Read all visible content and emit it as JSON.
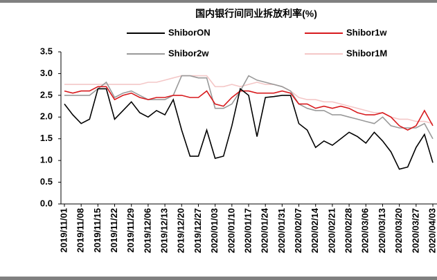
{
  "chart_data": {
    "type": "line",
    "title": "国内银行间同业拆放利率(%)",
    "categories": [
      "2019/11/01",
      null,
      "2019/11/08",
      null,
      "2019/11/15",
      null,
      "2019/11/22",
      null,
      "2019/11/29",
      null,
      "2019/12/06",
      null,
      "2019/12/13",
      null,
      "2019/12/20",
      null,
      "2019/12/27",
      null,
      "2020/01/03",
      null,
      "2020/01/10",
      null,
      "2020/01/17",
      null,
      "2020/01/24",
      null,
      "2020/01/31",
      null,
      "2020/02/07",
      null,
      "2020/02/14",
      null,
      "2020/02/21",
      null,
      "2020/02/28",
      null,
      "2020/03/06",
      null,
      "2020/03/13",
      null,
      "2020/03/20",
      null,
      "2020/03/27",
      null,
      "2020/04/03"
    ],
    "series": [
      {
        "name": "ShiborON",
        "color": "#000000",
        "values": [
          2.3,
          2.05,
          1.85,
          1.95,
          2.65,
          2.65,
          1.95,
          2.15,
          2.35,
          2.1,
          2.0,
          2.15,
          2.05,
          2.4,
          1.7,
          1.1,
          1.1,
          1.7,
          1.05,
          1.1,
          1.8,
          2.65,
          2.5,
          1.55,
          2.45,
          2.47,
          2.5,
          2.5,
          1.85,
          1.7,
          1.3,
          1.45,
          1.35,
          1.5,
          1.65,
          1.55,
          1.4,
          1.65,
          1.45,
          1.2,
          0.8,
          0.85,
          1.3,
          1.6,
          0.95
        ]
      },
      {
        "name": "Shibor1w",
        "color": "#d7191c",
        "values": [
          2.6,
          2.55,
          2.6,
          2.6,
          2.7,
          2.7,
          2.4,
          2.5,
          2.55,
          2.45,
          2.4,
          2.45,
          2.45,
          2.5,
          2.5,
          2.45,
          2.45,
          2.6,
          2.3,
          2.25,
          2.45,
          2.6,
          2.6,
          2.55,
          2.55,
          2.55,
          2.6,
          2.55,
          2.3,
          2.3,
          2.2,
          2.25,
          2.2,
          2.25,
          2.2,
          2.1,
          2.05,
          2.05,
          2.1,
          2.0,
          1.8,
          1.7,
          1.8,
          2.15,
          1.8
        ]
      },
      {
        "name": "Shibor2w",
        "color": "#999999",
        "values": [
          2.5,
          2.5,
          2.5,
          2.5,
          2.65,
          2.8,
          2.45,
          2.55,
          2.6,
          2.5,
          2.4,
          2.4,
          2.4,
          2.5,
          2.95,
          2.95,
          2.9,
          2.9,
          2.2,
          2.2,
          2.3,
          2.6,
          2.95,
          2.85,
          2.8,
          2.75,
          2.7,
          2.6,
          2.3,
          2.2,
          2.15,
          2.15,
          2.05,
          2.05,
          2.0,
          1.95,
          1.9,
          1.85,
          2.0,
          1.8,
          1.75,
          1.75,
          1.75,
          1.85,
          1.5
        ]
      },
      {
        "name": "Shibor1M",
        "color": "#f4c7c7",
        "values": [
          2.75,
          2.75,
          2.75,
          2.75,
          2.75,
          2.75,
          2.75,
          2.75,
          2.75,
          2.75,
          2.8,
          2.8,
          2.85,
          2.9,
          2.95,
          2.95,
          2.95,
          2.95,
          2.7,
          2.7,
          2.75,
          2.7,
          2.75,
          2.8,
          2.75,
          2.75,
          2.7,
          2.6,
          2.45,
          2.4,
          2.4,
          2.35,
          2.35,
          2.3,
          2.25,
          2.2,
          2.15,
          2.1,
          2.1,
          2.0,
          1.95,
          1.95,
          1.9,
          1.9,
          1.85
        ]
      }
    ],
    "ylim": [
      0,
      3.5
    ],
    "yticks": [
      {
        "value": 0,
        "label": "0.0"
      },
      0.5,
      {
        "value": 1,
        "label": "1.0"
      },
      1.5,
      {
        "value": 2,
        "label": "2.0"
      },
      2.5,
      {
        "value": 3,
        "label": "3.0"
      },
      3.5
    ],
    "grid": false
  }
}
